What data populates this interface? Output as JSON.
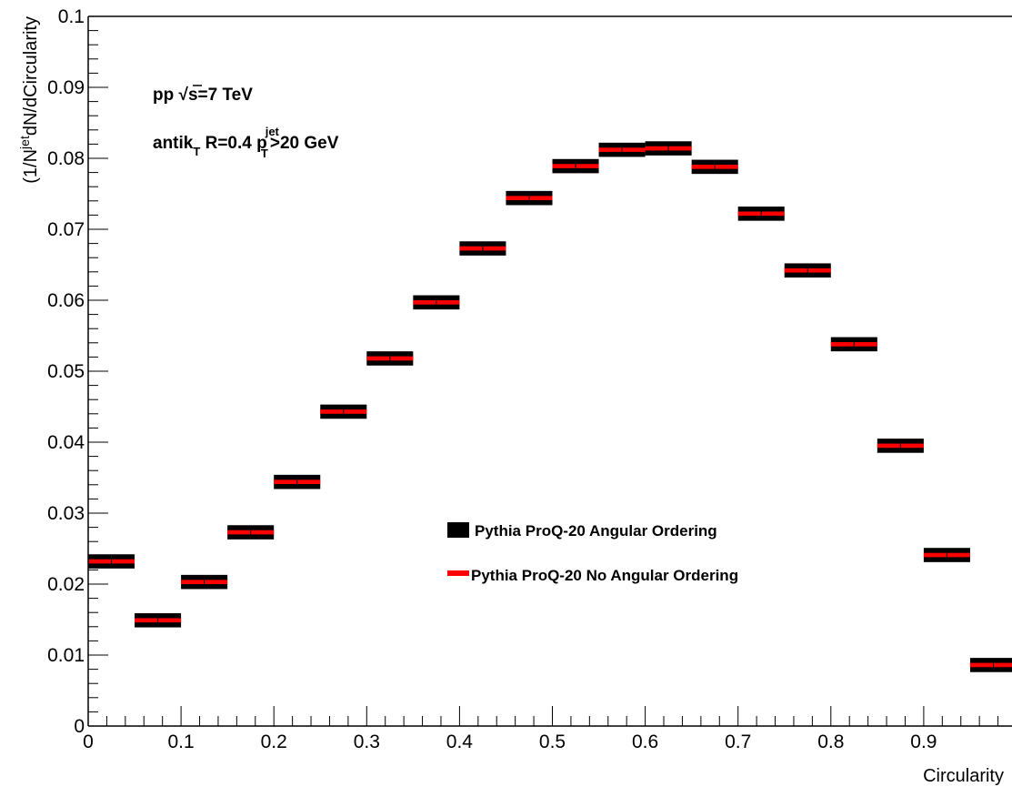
{
  "chart_data": {
    "type": "scatter",
    "xlabel": "Circularity",
    "ylabel": {
      "prefix": "(1/N",
      "sup": "jet",
      "suffix": "dN/dCircularity"
    },
    "xlim": [
      0,
      1
    ],
    "ylim": [
      0,
      0.1
    ],
    "x_ticks": [
      "0",
      "0.1",
      "0.2",
      "0.3",
      "0.4",
      "0.5",
      "0.6",
      "0.7",
      "0.8",
      "0.9"
    ],
    "y_ticks": [
      "0",
      "0.01",
      "0.02",
      "0.03",
      "0.04",
      "0.05",
      "0.06",
      "0.07",
      "0.08",
      "0.09",
      "0.1"
    ],
    "grid": false,
    "annotations": {
      "line1": {
        "prefix": "pp  ",
        "sqrt": "s",
        "suffix": "=7 TeV"
      },
      "line2": {
        "a": "antik",
        "a_sub": "T",
        "b": " R=0.4  p",
        "b_sup": "jet",
        "b_sub": "T",
        "c": ">20 GeV"
      }
    },
    "bin_edges": [
      0,
      0.05,
      0.1,
      0.15,
      0.2,
      0.25,
      0.3,
      0.35,
      0.4,
      0.45,
      0.5,
      0.55,
      0.6,
      0.65,
      0.7,
      0.75,
      0.8,
      0.85,
      0.9,
      0.95,
      1.0
    ],
    "series": [
      {
        "name": "Pythia ProQ-20 Angular Ordering",
        "color": "#000000",
        "style": "box",
        "values": [
          0.0232,
          0.0149,
          0.0203,
          0.0273,
          0.0344,
          0.0443,
          0.0518,
          0.0597,
          0.0673,
          0.0744,
          0.0789,
          0.0812,
          0.0814,
          0.0788,
          0.0722,
          0.0642,
          0.0538,
          0.0395,
          0.0241,
          0.0086
        ],
        "errors": [
          0.001,
          0.001,
          0.001,
          0.001,
          0.001,
          0.001,
          0.001,
          0.001,
          0.001,
          0.001,
          0.001,
          0.001,
          0.001,
          0.001,
          0.001,
          0.001,
          0.001,
          0.001,
          0.001,
          0.001
        ]
      },
      {
        "name": "Pythia ProQ-20 No Angular Ordering",
        "color": "#ff0000",
        "style": "line",
        "values": [
          0.0232,
          0.0149,
          0.0203,
          0.0273,
          0.0344,
          0.0443,
          0.0518,
          0.0597,
          0.0673,
          0.0744,
          0.0789,
          0.0812,
          0.0814,
          0.0788,
          0.0722,
          0.0642,
          0.0538,
          0.0395,
          0.0241,
          0.0086
        ],
        "errors": [
          0.0003,
          0.0003,
          0.0003,
          0.0003,
          0.0003,
          0.0003,
          0.0003,
          0.0003,
          0.0003,
          0.0003,
          0.0003,
          0.0003,
          0.0003,
          0.0003,
          0.0003,
          0.0003,
          0.0003,
          0.0003,
          0.0003,
          0.0003
        ]
      }
    ]
  }
}
